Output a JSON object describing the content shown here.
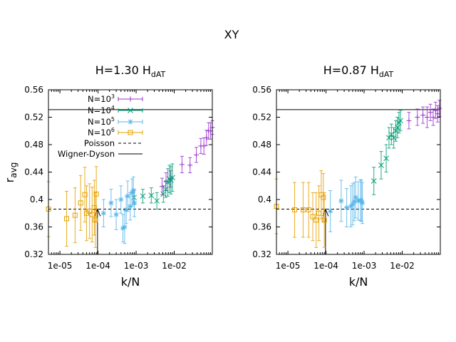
{
  "figure_title": "XY",
  "colors": {
    "n1e3": "#9933cc",
    "n1e4": "#009e73",
    "n1e5": "#56b4e9",
    "n1e6": "#e69f00",
    "ref": "#000000"
  },
  "chart_data": [
    {
      "type": "scatter",
      "title_main": "H=1.30 H",
      "title_sub": "dAT",
      "xlabel": "k/N",
      "ylabel_main": "r",
      "ylabel_sub": "avg",
      "xscale": "log",
      "xlim": [
        5e-06,
        0.1
      ],
      "ylim": [
        0.32,
        0.56
      ],
      "yticks": [
        0.32,
        0.36,
        0.4,
        0.44,
        0.48,
        0.52,
        0.56
      ],
      "ytick_labels": [
        "0.32",
        "0.36",
        "0.4",
        "0.44",
        "0.48",
        "0.52",
        "0.56"
      ],
      "xticks": [
        1e-05,
        0.0001,
        0.001,
        0.01
      ],
      "xtick_labels": [
        "1e-05",
        "1e-04",
        "1e-03",
        "1e-02"
      ],
      "hlines": [
        {
          "name": "Poisson",
          "value": 0.386,
          "style": "dashed"
        },
        {
          "name": "Wigner-Dyson",
          "value": 0.531,
          "style": "solid"
        }
      ],
      "vline": {
        "x": 9.7e-05,
        "style": "solid"
      },
      "legend": {
        "placement": "top-left",
        "entries": [
          {
            "base": "N=10",
            "exp": "3",
            "series": "n1e3"
          },
          {
            "base": "N=10",
            "exp": "4",
            "series": "n1e4"
          },
          {
            "base": "N=10",
            "exp": "5",
            "series": "n1e5"
          },
          {
            "base": "N=10",
            "exp": "6",
            "series": "n1e6"
          },
          {
            "base": "Poisson",
            "exp": "",
            "series": "poisson"
          },
          {
            "base": "Wigner-Dyson",
            "exp": "",
            "series": "wd"
          }
        ]
      },
      "series": [
        {
          "id": "n1e3",
          "name": "N=10^3",
          "marker": "plus",
          "points": [
            [
              0.0048,
              0.419,
              0.012
            ],
            [
              0.0061,
              0.426,
              0.013
            ],
            [
              0.008,
              0.43,
              0.012
            ],
            [
              0.016,
              0.451,
              0.012
            ],
            [
              0.026,
              0.45,
              0.011
            ],
            [
              0.038,
              0.465,
              0.011
            ],
            [
              0.05,
              0.478,
              0.011
            ],
            [
              0.06,
              0.478,
              0.012
            ],
            [
              0.07,
              0.49,
              0.011
            ],
            [
              0.08,
              0.5,
              0.012
            ],
            [
              0.09,
              0.5,
              0.012
            ],
            [
              0.1,
              0.505,
              0.01
            ]
          ]
        },
        {
          "id": "n1e4",
          "name": "N=10^4",
          "marker": "x",
          "points": [
            [
              0.00088,
              0.403,
              0.01
            ],
            [
              0.0015,
              0.405,
              0.01
            ],
            [
              0.0025,
              0.406,
              0.011
            ],
            [
              0.0035,
              0.398,
              0.012
            ],
            [
              0.0052,
              0.408,
              0.012
            ],
            [
              0.006,
              0.415,
              0.012
            ],
            [
              0.0068,
              0.425,
              0.02
            ],
            [
              0.0075,
              0.43,
              0.02
            ],
            [
              0.0082,
              0.428,
              0.02
            ],
            [
              0.009,
              0.432,
              0.02
            ]
          ]
        },
        {
          "id": "n1e5",
          "name": "N=10^5",
          "marker": "star",
          "points": [
            [
              0.00014,
              0.38,
              0.02
            ],
            [
              0.00022,
              0.395,
              0.02
            ],
            [
              0.0003,
              0.378,
              0.022
            ],
            [
              0.0004,
              0.4,
              0.02
            ],
            [
              0.00045,
              0.358,
              0.02
            ],
            [
              0.0005,
              0.36,
              0.024
            ],
            [
              0.00055,
              0.385,
              0.02
            ],
            [
              0.0006,
              0.405,
              0.022
            ],
            [
              0.0007,
              0.39,
              0.02
            ],
            [
              0.00078,
              0.41,
              0.02
            ],
            [
              0.00085,
              0.413,
              0.02
            ],
            [
              0.0009,
              0.395,
              0.02
            ]
          ]
        },
        {
          "id": "n1e6",
          "name": "N=10^6",
          "marker": "square",
          "points": [
            [
              5e-06,
              0.386,
              0.04
            ],
            [
              1.5e-05,
              0.372,
              0.04
            ],
            [
              2.5e-05,
              0.377,
              0.04
            ],
            [
              3.5e-05,
              0.395,
              0.04
            ],
            [
              4.5e-05,
              0.407,
              0.04
            ],
            [
              5e-05,
              0.38,
              0.04
            ],
            [
              6e-05,
              0.383,
              0.04
            ],
            [
              7e-05,
              0.378,
              0.04
            ],
            [
              8e-05,
              0.388,
              0.04
            ],
            [
              8.5e-05,
              0.37,
              0.04
            ],
            [
              9e-05,
              0.408,
              0.04
            ]
          ]
        }
      ]
    },
    {
      "type": "scatter",
      "title_main": "H=0.87 H",
      "title_sub": "dAT",
      "xlabel": "k/N",
      "xscale": "log",
      "xlim": [
        5e-06,
        0.1
      ],
      "ylim": [
        0.32,
        0.56
      ],
      "yticks": [
        0.32,
        0.36,
        0.4,
        0.44,
        0.48,
        0.52,
        0.56
      ],
      "ytick_labels": [
        "0.32",
        "0.36",
        "0.4",
        "0.44",
        "0.48",
        "0.52",
        "0.56"
      ],
      "xticks": [
        1e-05,
        0.0001,
        0.001,
        0.01
      ],
      "xtick_labels": [
        "1e-05",
        "1e-04",
        "1e-03",
        "1e-02"
      ],
      "hlines": [
        {
          "name": "Poisson",
          "value": 0.386,
          "style": "dashed"
        },
        {
          "name": "Wigner-Dyson",
          "value": 0.531,
          "style": "solid"
        }
      ],
      "vline": {
        "x": 9.7e-05,
        "style": "solid"
      },
      "series": [
        {
          "id": "n1e3",
          "name": "N=10^3",
          "marker": "plus",
          "points": [
            [
              0.015,
              0.515,
              0.012
            ],
            [
              0.025,
              0.52,
              0.012
            ],
            [
              0.035,
              0.523,
              0.012
            ],
            [
              0.045,
              0.52,
              0.015
            ],
            [
              0.055,
              0.527,
              0.012
            ],
            [
              0.065,
              0.52,
              0.012
            ],
            [
              0.075,
              0.53,
              0.012
            ],
            [
              0.085,
              0.525,
              0.012
            ],
            [
              0.095,
              0.533,
              0.012
            ]
          ]
        },
        {
          "id": "n1e4",
          "name": "N=10^4",
          "marker": "x",
          "points": [
            [
              0.0018,
              0.427,
              0.02
            ],
            [
              0.0028,
              0.45,
              0.02
            ],
            [
              0.0038,
              0.46,
              0.02
            ],
            [
              0.0045,
              0.49,
              0.015
            ],
            [
              0.0052,
              0.495,
              0.015
            ],
            [
              0.006,
              0.49,
              0.015
            ],
            [
              0.0068,
              0.5,
              0.015
            ],
            [
              0.0075,
              0.505,
              0.015
            ],
            [
              0.0082,
              0.512,
              0.015
            ],
            [
              0.009,
              0.515,
              0.015
            ]
          ]
        },
        {
          "id": "n1e5",
          "name": "N=10^5",
          "marker": "star",
          "points": [
            [
              0.00013,
              0.383,
              0.03
            ],
            [
              0.00025,
              0.398,
              0.03
            ],
            [
              0.00035,
              0.388,
              0.028
            ],
            [
              0.00045,
              0.39,
              0.03
            ],
            [
              0.0005,
              0.393,
              0.03
            ],
            [
              0.00055,
              0.397,
              0.028
            ],
            [
              0.0006,
              0.403,
              0.03
            ],
            [
              0.0007,
              0.398,
              0.028
            ],
            [
              0.0008,
              0.399,
              0.03
            ],
            [
              0.00085,
              0.398,
              0.03
            ],
            [
              0.0009,
              0.395,
              0.03
            ]
          ]
        },
        {
          "id": "n1e6",
          "name": "N=10^6",
          "marker": "square",
          "points": [
            [
              5e-06,
              0.39,
              0.04
            ],
            [
              1.5e-05,
              0.385,
              0.04
            ],
            [
              2.5e-05,
              0.385,
              0.04
            ],
            [
              3.5e-05,
              0.385,
              0.04
            ],
            [
              4.5e-05,
              0.375,
              0.035
            ],
            [
              5.5e-05,
              0.37,
              0.04
            ],
            [
              6.5e-05,
              0.38,
              0.04
            ],
            [
              7.5e-05,
              0.407,
              0.035
            ],
            [
              8.5e-05,
              0.403,
              0.035
            ],
            [
              9e-05,
              0.37,
              0.04
            ]
          ]
        }
      ]
    }
  ]
}
